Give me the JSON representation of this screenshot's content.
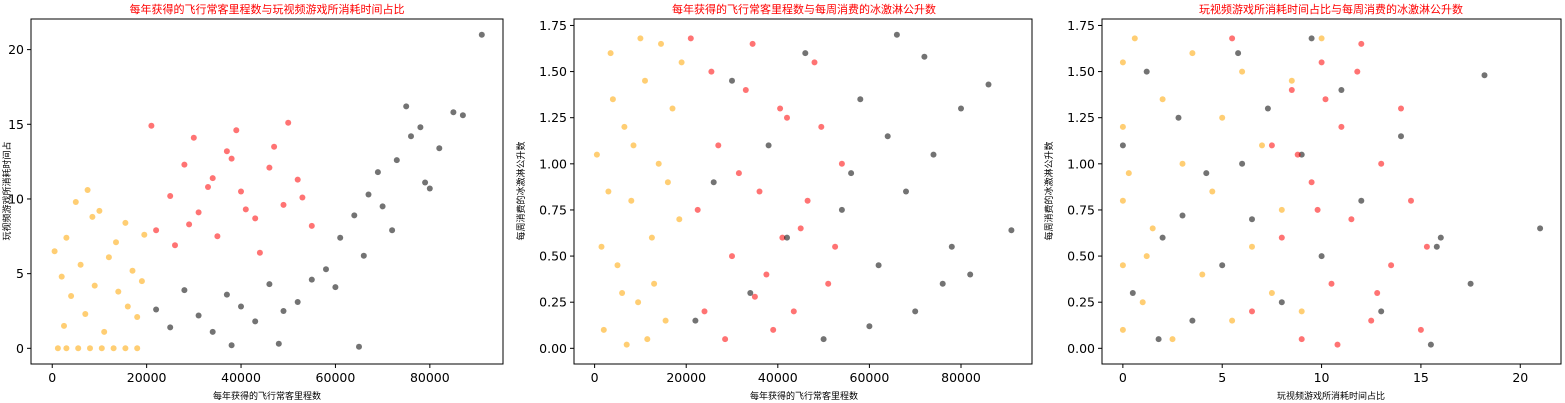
{
  "figure": {
    "colors": {
      "class1": "#000000",
      "class2": "#ffa500",
      "class3": "#ff0000",
      "title": "#ff0000"
    }
  },
  "chart_data": [
    {
      "type": "scatter",
      "title": "每年获得的飞行常客里程数与玩视频游戏所消耗时间占比",
      "xlabel": "每年获得的飞行常客里程数",
      "ylabel": "玩视频游戏所消耗时间占",
      "xlim": [
        -4500,
        95500
      ],
      "ylim": [
        -1.05,
        22.05
      ],
      "xticks": [
        0,
        20000,
        40000,
        60000,
        80000
      ],
      "yticks": [
        0,
        5,
        10,
        15,
        20
      ],
      "xtick_labels": [
        "0",
        "20000",
        "40000",
        "60000",
        "80000"
      ],
      "ytick_labels": [
        "0",
        "5",
        "10",
        "15",
        "20"
      ],
      "grid": false,
      "series": [
        {
          "color": "#ffa500",
          "points": [
            [
              1200,
              0
            ],
            [
              3000,
              0
            ],
            [
              5500,
              0
            ],
            [
              8000,
              0
            ],
            [
              10500,
              0
            ],
            [
              13000,
              0
            ],
            [
              15500,
              0
            ],
            [
              18000,
              0
            ],
            [
              2500,
              1.5
            ],
            [
              7000,
              2.3
            ],
            [
              11000,
              1.1
            ],
            [
              16000,
              2.8
            ],
            [
              4000,
              3.5
            ],
            [
              9000,
              4.2
            ],
            [
              14000,
              3.8
            ],
            [
              19000,
              4.5
            ],
            [
              6000,
              5.6
            ],
            [
              12000,
              6.1
            ],
            [
              17000,
              5.2
            ],
            [
              3000,
              7.4
            ],
            [
              8500,
              8.8
            ],
            [
              13500,
              7.1
            ],
            [
              5000,
              9.8
            ],
            [
              10000,
              9.2
            ],
            [
              15500,
              8.4
            ],
            [
              500,
              6.5
            ],
            [
              19500,
              7.6
            ],
            [
              7500,
              10.6
            ],
            [
              2000,
              4.8
            ],
            [
              18000,
              2.1
            ]
          ]
        },
        {
          "color": "#ff0000",
          "points": [
            [
              22000,
              7.9
            ],
            [
              25000,
              10.2
            ],
            [
              28000,
              12.3
            ],
            [
              31000,
              9.1
            ],
            [
              34000,
              11.4
            ],
            [
              37000,
              13.2
            ],
            [
              40000,
              10.5
            ],
            [
              43000,
              8.7
            ],
            [
              46000,
              12.1
            ],
            [
              49000,
              9.6
            ],
            [
              52000,
              11.3
            ],
            [
              55000,
              8.2
            ],
            [
              21000,
              14.9
            ],
            [
              30000,
              14.1
            ],
            [
              39000,
              14.6
            ],
            [
              47000,
              13.5
            ],
            [
              26000,
              6.9
            ],
            [
              35000,
              7.5
            ],
            [
              44000,
              6.4
            ],
            [
              53000,
              10.1
            ],
            [
              33000,
              10.8
            ],
            [
              29000,
              8.3
            ],
            [
              38000,
              12.7
            ],
            [
              41000,
              9.3
            ],
            [
              50000,
              15.1
            ]
          ]
        },
        {
          "color": "#000000",
          "points": [
            [
              22000,
              2.6
            ],
            [
              25000,
              1.4
            ],
            [
              28000,
              3.9
            ],
            [
              31000,
              2.2
            ],
            [
              34000,
              1.1
            ],
            [
              37000,
              3.6
            ],
            [
              40000,
              2.8
            ],
            [
              43000,
              1.8
            ],
            [
              46000,
              4.3
            ],
            [
              49000,
              2.5
            ],
            [
              52000,
              3.1
            ],
            [
              55000,
              4.6
            ],
            [
              58000,
              5.3
            ],
            [
              61000,
              7.4
            ],
            [
              64000,
              8.9
            ],
            [
              67000,
              10.3
            ],
            [
              70000,
              9.5
            ],
            [
              73000,
              12.6
            ],
            [
              76000,
              14.2
            ],
            [
              79000,
              11.1
            ],
            [
              82000,
              13.4
            ],
            [
              85000,
              15.8
            ],
            [
              87000,
              15.6
            ],
            [
              91000,
              21.0
            ],
            [
              66000,
              6.2
            ],
            [
              69000,
              11.8
            ],
            [
              72000,
              7.9
            ],
            [
              75000,
              16.2
            ],
            [
              78000,
              14.8
            ],
            [
              80000,
              10.7
            ],
            [
              48000,
              0.3
            ],
            [
              38000,
              0.2
            ],
            [
              65000,
              0.1
            ],
            [
              60000,
              4.1
            ]
          ]
        }
      ]
    },
    {
      "type": "scatter",
      "title": "每年获得的飞行常客里程数与每周消费的冰激淋公升数",
      "xlabel": "每年获得的飞行常客里程数",
      "ylabel": "每周消费的冰激淋公升数",
      "xlim": [
        -4500,
        95500
      ],
      "ylim": [
        -0.085,
        1.785
      ],
      "xticks": [
        0,
        20000,
        40000,
        60000,
        80000
      ],
      "yticks": [
        0.0,
        0.25,
        0.5,
        0.75,
        1.0,
        1.25,
        1.5,
        1.75
      ],
      "xtick_labels": [
        "0",
        "20000",
        "40000",
        "60000",
        "80000"
      ],
      "ytick_labels": [
        "0.00",
        "0.25",
        "0.50",
        "0.75",
        "1.00",
        "1.25",
        "1.50",
        "1.75"
      ],
      "grid": false,
      "series": [
        {
          "color": "#ffa500",
          "points": [
            [
              500,
              1.05
            ],
            [
              2000,
              0.1
            ],
            [
              3500,
              1.6
            ],
            [
              5000,
              0.45
            ],
            [
              6500,
              1.2
            ],
            [
              8000,
              0.8
            ],
            [
              9500,
              0.25
            ],
            [
              11000,
              1.45
            ],
            [
              12500,
              0.6
            ],
            [
              14000,
              1.0
            ],
            [
              15500,
              0.15
            ],
            [
              17000,
              1.3
            ],
            [
              18500,
              0.7
            ],
            [
              1500,
              0.55
            ],
            [
              4000,
              1.35
            ],
            [
              7000,
              0.02
            ],
            [
              10000,
              1.68
            ],
            [
              13000,
              0.35
            ],
            [
              16000,
              0.9
            ],
            [
              19000,
              1.55
            ],
            [
              3000,
              0.85
            ],
            [
              8500,
              1.1
            ],
            [
              11500,
              0.05
            ],
            [
              14500,
              1.65
            ],
            [
              6000,
              0.3
            ]
          ]
        },
        {
          "color": "#ff0000",
          "points": [
            [
              21000,
              1.68
            ],
            [
              24000,
              0.2
            ],
            [
              27000,
              1.1
            ],
            [
              30000,
              0.5
            ],
            [
              33000,
              1.4
            ],
            [
              36000,
              0.85
            ],
            [
              39000,
              0.1
            ],
            [
              42000,
              1.25
            ],
            [
              45000,
              0.65
            ],
            [
              48000,
              1.55
            ],
            [
              51000,
              0.35
            ],
            [
              54000,
              1.0
            ],
            [
              22500,
              0.75
            ],
            [
              25500,
              1.5
            ],
            [
              28500,
              0.05
            ],
            [
              31500,
              0.95
            ],
            [
              34500,
              1.65
            ],
            [
              37500,
              0.4
            ],
            [
              40500,
              1.3
            ],
            [
              43500,
              0.2
            ],
            [
              46500,
              0.8
            ],
            [
              49500,
              1.2
            ],
            [
              52500,
              0.55
            ],
            [
              35000,
              0.28
            ],
            [
              41000,
              0.6
            ]
          ]
        },
        {
          "color": "#000000",
          "points": [
            [
              22000,
              0.15
            ],
            [
              26000,
              0.9
            ],
            [
              30000,
              1.45
            ],
            [
              34000,
              0.3
            ],
            [
              38000,
              1.1
            ],
            [
              42000,
              0.6
            ],
            [
              46000,
              1.6
            ],
            [
              50000,
              0.05
            ],
            [
              54000,
              0.75
            ],
            [
              58000,
              1.35
            ],
            [
              62000,
              0.45
            ],
            [
              66000,
              1.7
            ],
            [
              70000,
              0.2
            ],
            [
              74000,
              1.05
            ],
            [
              78000,
              0.55
            ],
            [
              80000,
              1.3
            ],
            [
              82000,
              0.4
            ],
            [
              86000,
              1.43
            ],
            [
              91000,
              0.64
            ],
            [
              56000,
              0.95
            ],
            [
              60000,
              0.12
            ],
            [
              64000,
              1.15
            ],
            [
              68000,
              0.85
            ],
            [
              72000,
              1.58
            ],
            [
              76000,
              0.35
            ]
          ]
        }
      ]
    },
    {
      "type": "scatter",
      "title": "玩视频游戏所消耗时间占比与每周消费的冰激淋公升数",
      "xlabel": "玩视频游戏所消耗时间占比",
      "ylabel": "每周消费的冰激淋公升数",
      "xlim": [
        -1.05,
        22.05
      ],
      "ylim": [
        -0.085,
        1.785
      ],
      "xticks": [
        0,
        5,
        10,
        15,
        20
      ],
      "yticks": [
        0.0,
        0.25,
        0.5,
        0.75,
        1.0,
        1.25,
        1.5,
        1.75
      ],
      "xtick_labels": [
        "0",
        "5",
        "10",
        "15",
        "20"
      ],
      "ytick_labels": [
        "0.00",
        "0.25",
        "0.50",
        "0.75",
        "1.00",
        "1.25",
        "1.50",
        "1.75"
      ],
      "grid": false,
      "series": [
        {
          "color": "#000000",
          "points": [
            [
              0,
              1.1
            ],
            [
              0.5,
              0.3
            ],
            [
              1.2,
              1.5
            ],
            [
              2.0,
              0.6
            ],
            [
              2.8,
              1.25
            ],
            [
              3.5,
              0.15
            ],
            [
              4.2,
              0.95
            ],
            [
              5.0,
              0.45
            ],
            [
              5.8,
              1.6
            ],
            [
              6.5,
              0.7
            ],
            [
              7.3,
              1.3
            ],
            [
              8.0,
              0.25
            ],
            [
              9.0,
              1.05
            ],
            [
              10.0,
              0.5
            ],
            [
              11.0,
              1.4
            ],
            [
              12.0,
              0.8
            ],
            [
              13.0,
              0.2
            ],
            [
              14.0,
              1.15
            ],
            [
              15.5,
              0.02
            ],
            [
              16.0,
              0.6
            ],
            [
              17.5,
              0.35
            ],
            [
              18.2,
              1.48
            ],
            [
              21.0,
              0.65
            ],
            [
              15.8,
              0.55
            ],
            [
              9.5,
              1.68
            ],
            [
              3.0,
              0.72
            ],
            [
              1.8,
              0.05
            ],
            [
              6.0,
              1.0
            ]
          ]
        },
        {
          "color": "#ffa500",
          "points": [
            [
              0,
              0.1
            ],
            [
              0,
              0.45
            ],
            [
              0,
              0.8
            ],
            [
              0,
              1.2
            ],
            [
              0,
              1.55
            ],
            [
              0.3,
              0.95
            ],
            [
              0.6,
              1.68
            ],
            [
              1.0,
              0.25
            ],
            [
              1.5,
              0.65
            ],
            [
              2.0,
              1.35
            ],
            [
              2.5,
              0.05
            ],
            [
              3.0,
              1.0
            ],
            [
              3.5,
              1.6
            ],
            [
              4.0,
              0.4
            ],
            [
              4.5,
              0.85
            ],
            [
              5.0,
              1.25
            ],
            [
              5.5,
              0.15
            ],
            [
              6.0,
              1.5
            ],
            [
              6.5,
              0.55
            ],
            [
              7.0,
              1.1
            ],
            [
              7.5,
              0.3
            ],
            [
              8.0,
              0.75
            ],
            [
              8.5,
              1.45
            ],
            [
              9.0,
              0.2
            ],
            [
              10.0,
              1.68
            ],
            [
              1.2,
              0.5
            ]
          ]
        },
        {
          "color": "#ff0000",
          "points": [
            [
              5.5,
              1.68
            ],
            [
              6.5,
              0.2
            ],
            [
              7.5,
              1.1
            ],
            [
              8.0,
              0.6
            ],
            [
              8.5,
              1.4
            ],
            [
              9.0,
              0.05
            ],
            [
              9.5,
              0.9
            ],
            [
              10.0,
              1.55
            ],
            [
              10.5,
              0.35
            ],
            [
              11.0,
              1.2
            ],
            [
              11.5,
              0.7
            ],
            [
              12.0,
              1.65
            ],
            [
              12.5,
              0.15
            ],
            [
              13.0,
              1.0
            ],
            [
              13.5,
              0.45
            ],
            [
              14.0,
              1.3
            ],
            [
              14.5,
              0.8
            ],
            [
              15.0,
              0.1
            ],
            [
              15.3,
              0.55
            ],
            [
              9.8,
              0.75
            ],
            [
              10.8,
              0.02
            ],
            [
              11.8,
              1.5
            ],
            [
              12.8,
              0.3
            ],
            [
              8.8,
              1.05
            ],
            [
              10.2,
              1.35
            ]
          ]
        }
      ]
    }
  ]
}
